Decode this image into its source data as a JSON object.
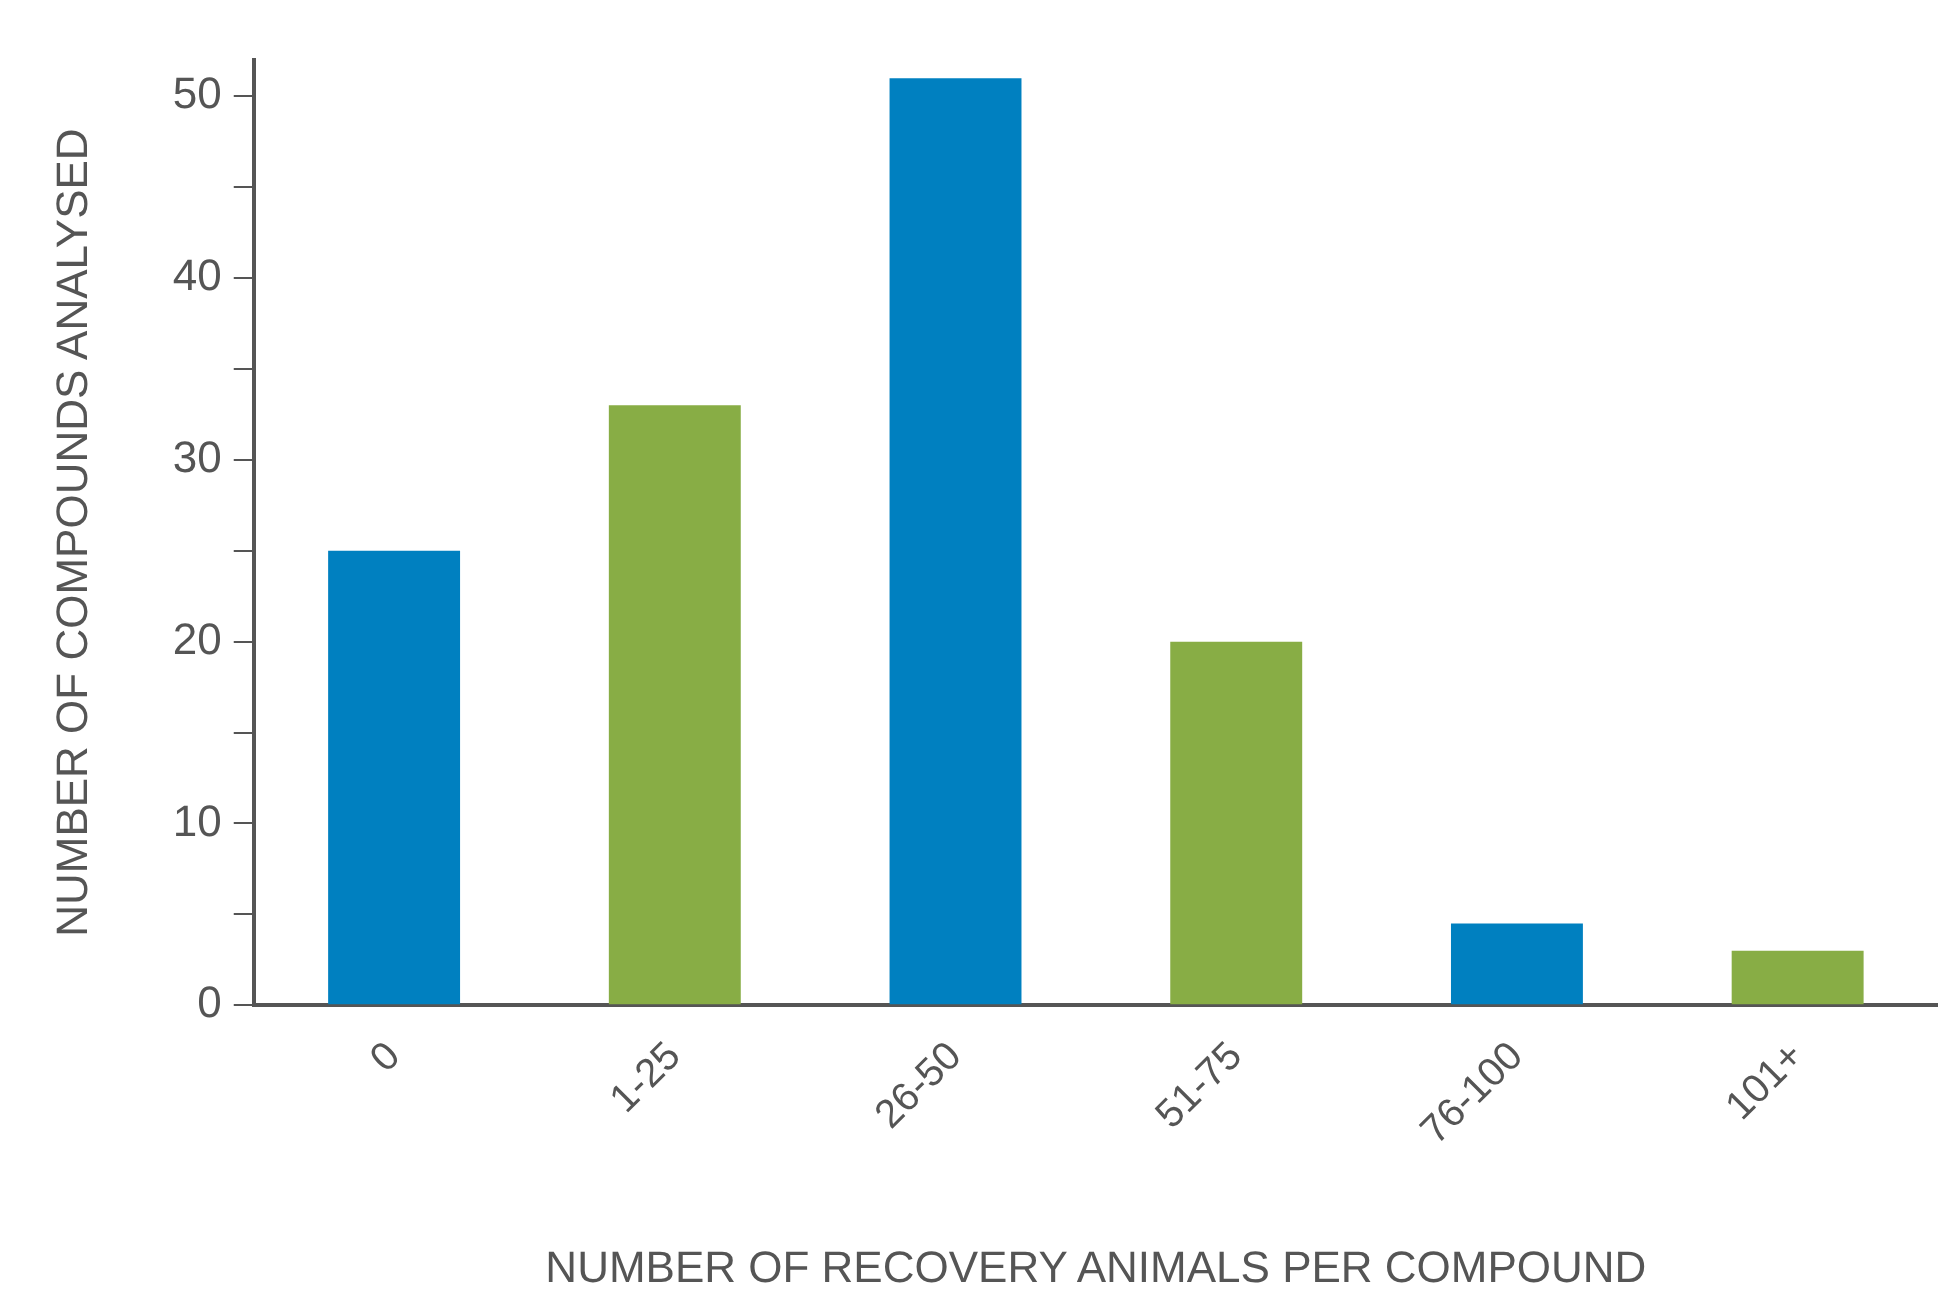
{
  "chart_data": {
    "type": "bar",
    "xlabel": "NUMBER OF RECOVERY ANIMALS PER COMPOUND",
    "ylabel": "NUMBER OF COMPOUNDS ANALYSED",
    "categories": [
      "0",
      "1-25",
      "26-50",
      "51-75",
      "76-100",
      "101+"
    ],
    "values": [
      25,
      33,
      51,
      20,
      4.5,
      3
    ],
    "colors": [
      "#0080c0",
      "#88ad45",
      "#0080c0",
      "#88ad45",
      "#0080c0",
      "#88ad45"
    ],
    "ylim": [
      0,
      52
    ],
    "yticks": [
      0,
      {
        "value": 5,
        "label": null
      },
      10,
      {
        "value": 15,
        "label": null
      },
      20,
      {
        "value": 25,
        "label": null
      },
      30,
      {
        "value": 35,
        "label": null
      },
      40,
      {
        "value": 45,
        "label": null
      },
      50
    ],
    "grid": false,
    "legend": false
  }
}
